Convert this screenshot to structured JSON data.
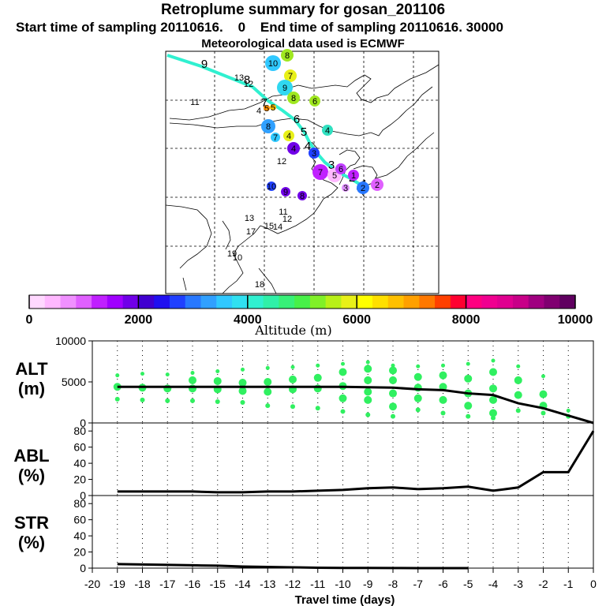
{
  "header": {
    "title": "Retroplume summary for gosan_201106",
    "line2": "Start time of sampling 20110616.    0    End time of sampling 20110616. 30000",
    "line3": "Meteorological data used is ECMWF"
  },
  "colorbar": {
    "ticks": [
      "0",
      "2000",
      "4000",
      "6000",
      "8000",
      "10000"
    ],
    "label": "Altitude (m)",
    "colors": [
      "#ffd8ff",
      "#ffb8ff",
      "#f090ff",
      "#e060ff",
      "#c020ff",
      "#a000ff",
      "#7000e8",
      "#4000d0",
      "#2010f0",
      "#2040ff",
      "#2878ff",
      "#30a0ff",
      "#30c8ff",
      "#30e0f0",
      "#30f0d0",
      "#30f0a8",
      "#38f078",
      "#48f048",
      "#80f028",
      "#b8f018",
      "#e8f018",
      "#ffff00",
      "#ffe000",
      "#ffc000",
      "#ffa000",
      "#ff7800",
      "#ff4000",
      "#ff0030",
      "#ff0080",
      "#f00090",
      "#e00090",
      "#c80088",
      "#a00080",
      "#800070",
      "#600060"
    ]
  },
  "map": {
    "trajectory_labels": [
      "9",
      "8",
      "7",
      "6",
      "5",
      "4",
      "3",
      "2",
      "1"
    ],
    "markers": [
      {
        "n": "8",
        "c": "#a0e820"
      },
      {
        "n": "10",
        "c": "#30c8ff"
      },
      {
        "n": "7",
        "c": "#e8f018"
      },
      {
        "n": "9",
        "c": "#30d8f0"
      },
      {
        "n": "8",
        "c": "#a0e820"
      },
      {
        "n": "6",
        "c": "#a0e820"
      },
      {
        "n": "13",
        "c": "#2878ff"
      },
      {
        "n": "12",
        "c": "#2878ff"
      },
      {
        "n": "5",
        "c": "#ff9000"
      },
      {
        "n": "11",
        "c": "#30c8ff"
      },
      {
        "n": "5",
        "c": "#ffc000"
      },
      {
        "n": "4",
        "c": "#ffc000"
      },
      {
        "n": "8",
        "c": "#30a0ff"
      },
      {
        "n": "4",
        "c": "#30e0c0"
      },
      {
        "n": "7",
        "c": "#30c8ff"
      },
      {
        "n": "4",
        "c": "#e8f018"
      },
      {
        "n": "3",
        "c": "#2040ff"
      },
      {
        "n": "4",
        "c": "#7000e8"
      },
      {
        "n": "12",
        "c": "#2878ff"
      },
      {
        "n": "7",
        "c": "#c020ff"
      },
      {
        "n": "5",
        "c": "#ffb8ff"
      },
      {
        "n": "6",
        "c": "#c040ff"
      },
      {
        "n": "3",
        "c": "#e090ff"
      },
      {
        "n": "1",
        "c": "#c020ff"
      },
      {
        "n": "2",
        "c": "#2878ff"
      },
      {
        "n": "2",
        "c": "#e060ff"
      },
      {
        "n": "10",
        "c": "#2040ff"
      },
      {
        "n": "9",
        "c": "#7000e8"
      },
      {
        "n": "8",
        "c": "#7000e8"
      },
      {
        "n": "11",
        "c": "#7000e8"
      },
      {
        "n": "12",
        "c": "#7000e8"
      },
      {
        "n": "13",
        "c": "#2878ff"
      },
      {
        "n": "15",
        "c": "#2878ff"
      },
      {
        "n": "14",
        "c": "#2878ff"
      },
      {
        "n": "17",
        "c": "#2878ff"
      },
      {
        "n": "19",
        "c": "#ffffff"
      },
      {
        "n": "10",
        "c": "#ffffff"
      },
      {
        "n": "18",
        "c": "#ffffff"
      }
    ]
  },
  "panels": {
    "alt": {
      "label_line1": "ALT",
      "label_line2": "(m)"
    },
    "abl": {
      "label_line1": "ABL",
      "label_line2": "(%)"
    },
    "str": {
      "label_line1": "STR",
      "label_line2": "(%)"
    }
  },
  "xaxis": {
    "title": "Travel time (days)"
  },
  "chart_data": [
    {
      "type": "line",
      "title": "ALT",
      "ylabel": "(m)",
      "xlabel": "Travel time (days)",
      "xlim": [
        -20,
        0
      ],
      "ylim": [
        0,
        10000
      ],
      "yticks": [
        "0",
        "5000",
        "10000"
      ],
      "xticks": [
        "-20",
        "-19",
        "-18",
        "-17",
        "-16",
        "-15",
        "-14",
        "-13",
        "-12",
        "-11",
        "-10",
        "-9",
        "-8",
        "-7",
        "-6",
        "-5",
        "-4",
        "-3",
        "-2",
        "-1",
        "0"
      ],
      "series": [
        {
          "name": "mean altitude",
          "x": [
            -19,
            -18,
            -17,
            -16,
            -15,
            -14,
            -13,
            -12,
            -11,
            -10,
            -9,
            -8,
            -7,
            -6,
            -5,
            -4,
            -3,
            -2,
            -1,
            0
          ],
          "y": [
            4400,
            4400,
            4400,
            4400,
            4400,
            4400,
            4400,
            4400,
            4400,
            4400,
            4350,
            4300,
            4100,
            4000,
            3600,
            3400,
            2400,
            1800,
            900,
            0
          ]
        }
      ],
      "scatter": [
        {
          "x": -19,
          "y": [
            5800,
            4400,
            2900
          ]
        },
        {
          "x": -18,
          "y": [
            6000,
            4300,
            2800
          ]
        },
        {
          "x": -17,
          "y": [
            5900,
            4200,
            2700
          ]
        },
        {
          "x": -16,
          "y": [
            6100,
            5200,
            4200,
            2700
          ]
        },
        {
          "x": -15,
          "y": [
            6300,
            5100,
            4100,
            2600
          ]
        },
        {
          "x": -14,
          "y": [
            6500,
            4900,
            3900,
            2500
          ]
        },
        {
          "x": -13,
          "y": [
            6700,
            5000,
            3800,
            2100
          ]
        },
        {
          "x": -12,
          "y": [
            6800,
            5300,
            4100,
            2000
          ]
        },
        {
          "x": -11,
          "y": [
            7000,
            5500,
            4200,
            1800
          ]
        },
        {
          "x": -10,
          "y": [
            7200,
            6200,
            4500,
            3000,
            1400
          ]
        },
        {
          "x": -9,
          "y": [
            7400,
            6600,
            5200,
            3800,
            2800,
            1000
          ]
        },
        {
          "x": -8,
          "y": [
            7000,
            6400,
            5200,
            3600,
            2000,
            800
          ]
        },
        {
          "x": -7,
          "y": [
            6900,
            5600,
            4300,
            3000,
            1600
          ]
        },
        {
          "x": -6,
          "y": [
            7000,
            5800,
            4400,
            2800,
            1200
          ]
        },
        {
          "x": -5,
          "y": [
            7200,
            5400,
            3600,
            2100,
            800
          ]
        },
        {
          "x": -4,
          "y": [
            7600,
            6200,
            4200,
            2800,
            1200,
            600
          ]
        },
        {
          "x": -3,
          "y": [
            6900,
            5200,
            3400,
            1500
          ]
        },
        {
          "x": -2,
          "y": [
            5700,
            3500,
            2100,
            1200
          ]
        },
        {
          "x": -1,
          "y": [
            1500,
            800
          ]
        }
      ]
    },
    {
      "type": "line",
      "title": "ABL",
      "ylabel": "(%)",
      "xlim": [
        -20,
        0
      ],
      "ylim": [
        0,
        90
      ],
      "yticks": [
        "0",
        "20",
        "40",
        "60",
        "80"
      ],
      "series": [
        {
          "name": "ABL fraction",
          "x": [
            -19,
            -18,
            -17,
            -16,
            -15,
            -14,
            -13,
            -12,
            -11,
            -10,
            -9,
            -8,
            -7,
            -6,
            -5,
            -4,
            -3,
            -2,
            -1,
            0
          ],
          "y": [
            5,
            5,
            5,
            5,
            4,
            4,
            5,
            5,
            6,
            7,
            9,
            10,
            8,
            9,
            11,
            6,
            10,
            29,
            29,
            80
          ]
        }
      ]
    },
    {
      "type": "line",
      "title": "STR",
      "ylabel": "(%)",
      "xlim": [
        -20,
        0
      ],
      "ylim": [
        0,
        90
      ],
      "yticks": [
        "0",
        "20",
        "40",
        "60",
        "80"
      ],
      "series": [
        {
          "name": "STR fraction",
          "x": [
            -19,
            -18,
            -17,
            -16,
            -15,
            -14,
            -13,
            -12,
            -11,
            -10,
            -9,
            -8,
            -7,
            -6,
            -5
          ],
          "y": [
            5,
            4.5,
            4,
            3.5,
            3,
            2,
            1.5,
            1,
            0.5,
            0.3,
            0.2,
            0.1,
            0.05,
            0,
            0
          ]
        }
      ]
    }
  ]
}
